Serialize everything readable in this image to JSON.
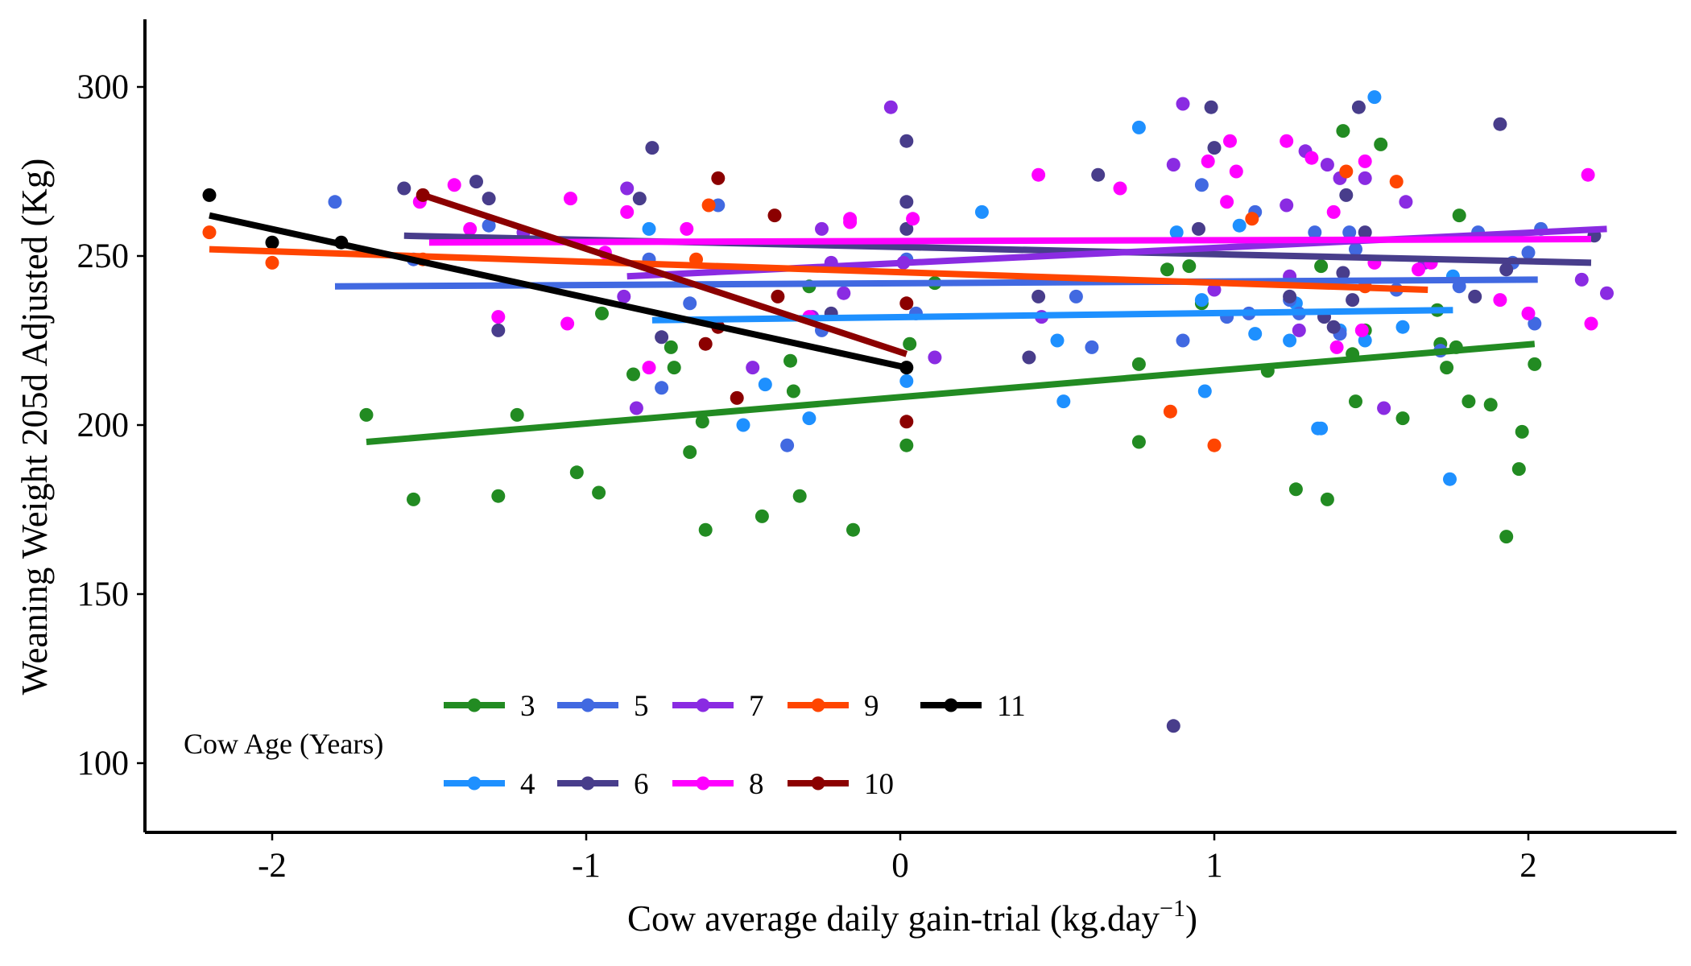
{
  "chart_data": {
    "type": "scatter",
    "title": "",
    "xlabel_main": "Cow average daily gain-trial (kg.day",
    "xlabel_sup": "−1",
    "xlabel_close": ")",
    "ylabel": "Weaning Weight 205d Adjusted (Kg)",
    "xlim": [
      -2.4,
      2.5
    ],
    "ylim": [
      80,
      320
    ],
    "x_ticks": [
      {
        "value": -2,
        "label": "-2"
      },
      {
        "value": -1,
        "label": "-1"
      },
      {
        "value": 0,
        "label": "0"
      },
      {
        "value": 1,
        "label": "1"
      },
      {
        "value": 2,
        "label": "2"
      }
    ],
    "y_ticks": [
      {
        "value": 100,
        "label": "100"
      },
      {
        "value": 150,
        "label": "150"
      },
      {
        "value": 200,
        "label": "200"
      },
      {
        "value": 250,
        "label": "250"
      },
      {
        "value": 300,
        "label": "300"
      }
    ],
    "legend": {
      "title": "Cow Age (Years)",
      "placement": "bottom-left, inside plot"
    },
    "series": [
      {
        "name": "3",
        "color": "#228B22",
        "fit": [
          [
            -1.7,
            195
          ],
          [
            2.02,
            224
          ]
        ],
        "points": [
          [
            -1.7,
            203
          ],
          [
            -1.55,
            178
          ],
          [
            -1.28,
            179
          ],
          [
            -1.22,
            203
          ],
          [
            -1.03,
            186
          ],
          [
            -0.96,
            180
          ],
          [
            -0.95,
            233
          ],
          [
            -0.85,
            215
          ],
          [
            -0.73,
            223
          ],
          [
            -0.72,
            217
          ],
          [
            -0.67,
            192
          ],
          [
            -0.63,
            201
          ],
          [
            -0.62,
            169
          ],
          [
            -0.44,
            173
          ],
          [
            -0.35,
            219
          ],
          [
            -0.34,
            210
          ],
          [
            -0.32,
            179
          ],
          [
            -0.29,
            241
          ],
          [
            -0.15,
            169
          ],
          [
            0.02,
            194
          ],
          [
            0.03,
            224
          ],
          [
            0.11,
            242
          ],
          [
            0.76,
            218
          ],
          [
            0.76,
            195
          ],
          [
            0.85,
            246
          ],
          [
            0.92,
            247
          ],
          [
            0.96,
            236
          ],
          [
            1.17,
            216
          ],
          [
            1.26,
            181
          ],
          [
            1.34,
            247
          ],
          [
            1.36,
            178
          ],
          [
            1.41,
            287
          ],
          [
            1.44,
            221
          ],
          [
            1.45,
            207
          ],
          [
            1.48,
            228
          ],
          [
            1.53,
            283
          ],
          [
            1.6,
            202
          ],
          [
            1.71,
            234
          ],
          [
            1.72,
            224
          ],
          [
            1.74,
            217
          ],
          [
            1.77,
            223
          ],
          [
            1.78,
            262
          ],
          [
            1.81,
            207
          ],
          [
            1.88,
            206
          ],
          [
            1.93,
            167
          ],
          [
            1.97,
            187
          ],
          [
            1.98,
            198
          ],
          [
            2.02,
            218
          ]
        ]
      },
      {
        "name": "4",
        "color": "#1E90FF",
        "fit": [
          [
            -0.79,
            231
          ],
          [
            1.76,
            234
          ]
        ],
        "points": [
          [
            -0.8,
            258
          ],
          [
            -0.5,
            200
          ],
          [
            -0.43,
            212
          ],
          [
            -0.29,
            202
          ],
          [
            0.02,
            213
          ],
          [
            0.26,
            263
          ],
          [
            0.5,
            225
          ],
          [
            0.52,
            207
          ],
          [
            0.76,
            288
          ],
          [
            0.88,
            257
          ],
          [
            0.96,
            237
          ],
          [
            0.97,
            210
          ],
          [
            1.08,
            259
          ],
          [
            1.13,
            227
          ],
          [
            1.24,
            225
          ],
          [
            1.26,
            236
          ],
          [
            1.33,
            199
          ],
          [
            1.34,
            199
          ],
          [
            1.4,
            228
          ],
          [
            1.48,
            225
          ],
          [
            1.51,
            297
          ],
          [
            1.6,
            229
          ],
          [
            1.75,
            184
          ],
          [
            1.76,
            244
          ]
        ]
      },
      {
        "name": "5",
        "color": "#4169E1",
        "fit": [
          [
            -1.8,
            241
          ],
          [
            2.03,
            243
          ]
        ],
        "points": [
          [
            -1.8,
            266
          ],
          [
            -1.55,
            249
          ],
          [
            -1.31,
            259
          ],
          [
            -0.8,
            249
          ],
          [
            -0.76,
            211
          ],
          [
            -0.67,
            236
          ],
          [
            -0.58,
            265
          ],
          [
            -0.36,
            194
          ],
          [
            -0.25,
            228
          ],
          [
            0.02,
            249
          ],
          [
            0.05,
            233
          ],
          [
            0.56,
            238
          ],
          [
            0.61,
            223
          ],
          [
            0.9,
            225
          ],
          [
            0.96,
            271
          ],
          [
            1.04,
            232
          ],
          [
            1.11,
            233
          ],
          [
            1.13,
            263
          ],
          [
            1.24,
            237
          ],
          [
            1.27,
            233
          ],
          [
            1.32,
            257
          ],
          [
            1.4,
            227
          ],
          [
            1.43,
            257
          ],
          [
            1.45,
            252
          ],
          [
            1.58,
            240
          ],
          [
            1.72,
            222
          ],
          [
            1.78,
            241
          ],
          [
            1.84,
            257
          ],
          [
            1.95,
            248
          ],
          [
            2.0,
            251
          ],
          [
            2.02,
            230
          ],
          [
            2.04,
            258
          ]
        ]
      },
      {
        "name": "6",
        "color": "#483D8B",
        "fit": [
          [
            -1.58,
            256
          ],
          [
            2.2,
            248
          ]
        ],
        "points": [
          [
            -1.58,
            270
          ],
          [
            -1.35,
            272
          ],
          [
            -1.31,
            267
          ],
          [
            -1.28,
            228
          ],
          [
            -0.83,
            267
          ],
          [
            -0.79,
            282
          ],
          [
            -0.76,
            226
          ],
          [
            -0.22,
            233
          ],
          [
            0.02,
            266
          ],
          [
            0.02,
            284
          ],
          [
            0.02,
            258
          ],
          [
            0.41,
            220
          ],
          [
            0.44,
            238
          ],
          [
            0.63,
            274
          ],
          [
            0.87,
            111
          ],
          [
            0.95,
            258
          ],
          [
            0.99,
            294
          ],
          [
            1.0,
            282
          ],
          [
            1.24,
            238
          ],
          [
            1.35,
            232
          ],
          [
            1.38,
            229
          ],
          [
            1.41,
            245
          ],
          [
            1.42,
            268
          ],
          [
            1.44,
            237
          ],
          [
            1.46,
            294
          ],
          [
            1.48,
            257
          ],
          [
            1.83,
            238
          ],
          [
            1.91,
            289
          ],
          [
            1.93,
            246
          ],
          [
            2.21,
            256
          ]
        ]
      },
      {
        "name": "7",
        "color": "#8A2BE2",
        "fit": [
          [
            -0.87,
            244
          ],
          [
            2.25,
            258
          ]
        ],
        "points": [
          [
            -1.2,
            257
          ],
          [
            -0.88,
            238
          ],
          [
            -0.87,
            270
          ],
          [
            -0.84,
            205
          ],
          [
            -0.47,
            217
          ],
          [
            -0.28,
            232
          ],
          [
            -0.25,
            258
          ],
          [
            -0.22,
            248
          ],
          [
            -0.18,
            239
          ],
          [
            -0.03,
            294
          ],
          [
            0.01,
            248
          ],
          [
            0.11,
            220
          ],
          [
            0.45,
            232
          ],
          [
            0.87,
            277
          ],
          [
            0.9,
            295
          ],
          [
            1.0,
            240
          ],
          [
            1.23,
            265
          ],
          [
            1.24,
            244
          ],
          [
            1.27,
            228
          ],
          [
            1.29,
            281
          ],
          [
            1.36,
            277
          ],
          [
            1.4,
            273
          ],
          [
            1.48,
            273
          ],
          [
            1.54,
            205
          ],
          [
            1.61,
            266
          ],
          [
            1.67,
            248
          ],
          [
            2.17,
            243
          ],
          [
            2.25,
            239
          ]
        ]
      },
      {
        "name": "8",
        "color": "#FF00FF",
        "fit": [
          [
            -1.5,
            254
          ],
          [
            2.2,
            255
          ]
        ],
        "points": [
          [
            -1.53,
            266
          ],
          [
            -1.42,
            271
          ],
          [
            -1.37,
            258
          ],
          [
            -1.28,
            232
          ],
          [
            -1.06,
            230
          ],
          [
            -1.05,
            267
          ],
          [
            -0.94,
            251
          ],
          [
            -0.87,
            263
          ],
          [
            -0.8,
            217
          ],
          [
            -0.68,
            258
          ],
          [
            -0.29,
            232
          ],
          [
            -0.16,
            261
          ],
          [
            -0.16,
            260
          ],
          [
            0.04,
            261
          ],
          [
            0.44,
            274
          ],
          [
            0.7,
            270
          ],
          [
            0.98,
            278
          ],
          [
            1.05,
            284
          ],
          [
            1.04,
            266
          ],
          [
            1.07,
            275
          ],
          [
            1.23,
            284
          ],
          [
            1.31,
            279
          ],
          [
            1.38,
            263
          ],
          [
            1.39,
            223
          ],
          [
            1.47,
            228
          ],
          [
            1.48,
            278
          ],
          [
            1.51,
            248
          ],
          [
            1.65,
            246
          ],
          [
            1.69,
            248
          ],
          [
            1.91,
            237
          ],
          [
            2.0,
            233
          ],
          [
            2.19,
            274
          ],
          [
            2.2,
            230
          ]
        ]
      },
      {
        "name": "9",
        "color": "#FF4500",
        "fit": [
          [
            -2.2,
            252
          ],
          [
            1.68,
            240
          ]
        ],
        "points": [
          [
            -2.2,
            257
          ],
          [
            -2.0,
            248
          ],
          [
            -1.52,
            249
          ],
          [
            -0.65,
            249
          ],
          [
            -0.61,
            265
          ],
          [
            0.86,
            204
          ],
          [
            1.0,
            194
          ],
          [
            1.12,
            261
          ],
          [
            1.48,
            241
          ],
          [
            1.42,
            275
          ],
          [
            1.58,
            272
          ]
        ]
      },
      {
        "name": "10",
        "color": "#8B0000",
        "fit": [
          [
            -1.52,
            268
          ],
          [
            0.02,
            221
          ]
        ],
        "points": [
          [
            -1.52,
            268
          ],
          [
            -0.58,
            273
          ],
          [
            -0.58,
            229
          ],
          [
            -0.52,
            208
          ],
          [
            -0.62,
            224
          ],
          [
            -0.4,
            262
          ],
          [
            -0.39,
            238
          ],
          [
            0.02,
            236
          ],
          [
            0.02,
            201
          ]
        ]
      },
      {
        "name": "11",
        "color": "#000000",
        "fit": [
          [
            -2.2,
            262
          ],
          [
            0.02,
            217
          ]
        ],
        "points": [
          [
            -2.2,
            268
          ],
          [
            -2.0,
            254
          ],
          [
            -1.78,
            254
          ],
          [
            0.02,
            217
          ]
        ]
      }
    ]
  }
}
